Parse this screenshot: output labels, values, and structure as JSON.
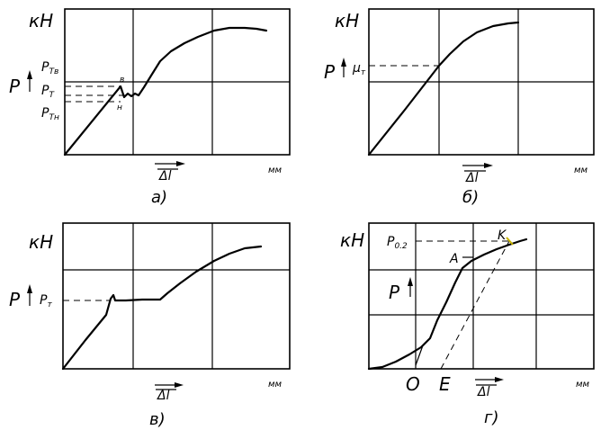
{
  "panels": {
    "a": {
      "y_unit": "кН",
      "x_unit": "мм",
      "force_label": "P",
      "levels": [
        "P",
        "P",
        "P"
      ],
      "level_subs": [
        "Тв",
        "Т",
        "Тн"
      ],
      "point_upper": "в",
      "point_lower": "н",
      "delta_label": "Δl",
      "caption": "а)"
    },
    "b": {
      "y_unit": "кН",
      "x_unit": "мм",
      "force_label": "P",
      "level": "μ",
      "level_sub": "т",
      "delta_label": "Δl",
      "caption": "б)"
    },
    "v": {
      "y_unit": "кН",
      "x_unit": "мм",
      "force_label": "P",
      "level": "P",
      "level_sub": "т",
      "delta_label": "Δl",
      "caption": "в)"
    },
    "g": {
      "y_unit": "кН",
      "x_unit": "мм",
      "force_label": "P",
      "level": "P",
      "level_sub": "0.2",
      "point_a": "A",
      "point_k": "K",
      "point_o": "O",
      "point_e": "E",
      "delta_label": "Δl",
      "caption": "г)"
    }
  }
}
